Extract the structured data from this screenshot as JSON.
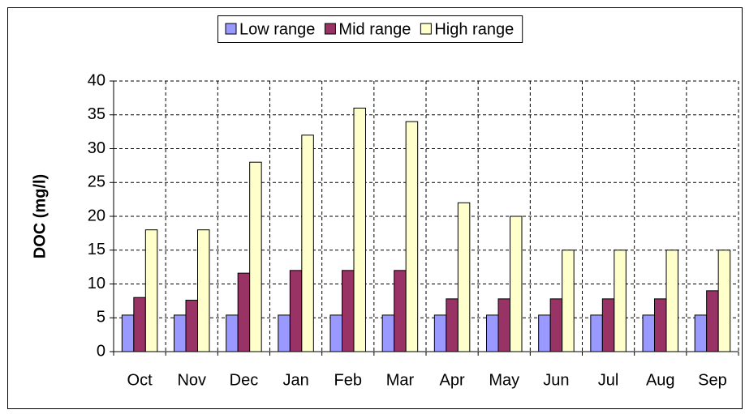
{
  "chart_data": {
    "type": "bar",
    "y_label": "DOC (mg/l)",
    "categories": [
      "Oct",
      "Nov",
      "Dec",
      "Jan",
      "Feb",
      "Mar",
      "Apr",
      "May",
      "Jun",
      "Jul",
      "Aug",
      "Sep"
    ],
    "series": [
      {
        "name": "Low range",
        "color": "#9999ff",
        "values": [
          5.4,
          5.4,
          5.4,
          5.4,
          5.4,
          5.4,
          5.4,
          5.4,
          5.4,
          5.4,
          5.4,
          5.4
        ]
      },
      {
        "name": "Mid range",
        "color": "#993366",
        "values": [
          8,
          7.6,
          11.6,
          12,
          12,
          12,
          7.8,
          7.8,
          7.8,
          7.8,
          7.8,
          9
        ]
      },
      {
        "name": "High range",
        "color": "#ffffcc",
        "values": [
          18,
          18,
          28,
          32,
          36,
          34,
          22,
          20,
          15,
          15,
          15,
          15
        ]
      }
    ],
    "ylim": [
      0,
      40
    ],
    "yticks": [
      0,
      5,
      10,
      15,
      20,
      25,
      30,
      35,
      40
    ],
    "grid": true,
    "legend": "top"
  }
}
